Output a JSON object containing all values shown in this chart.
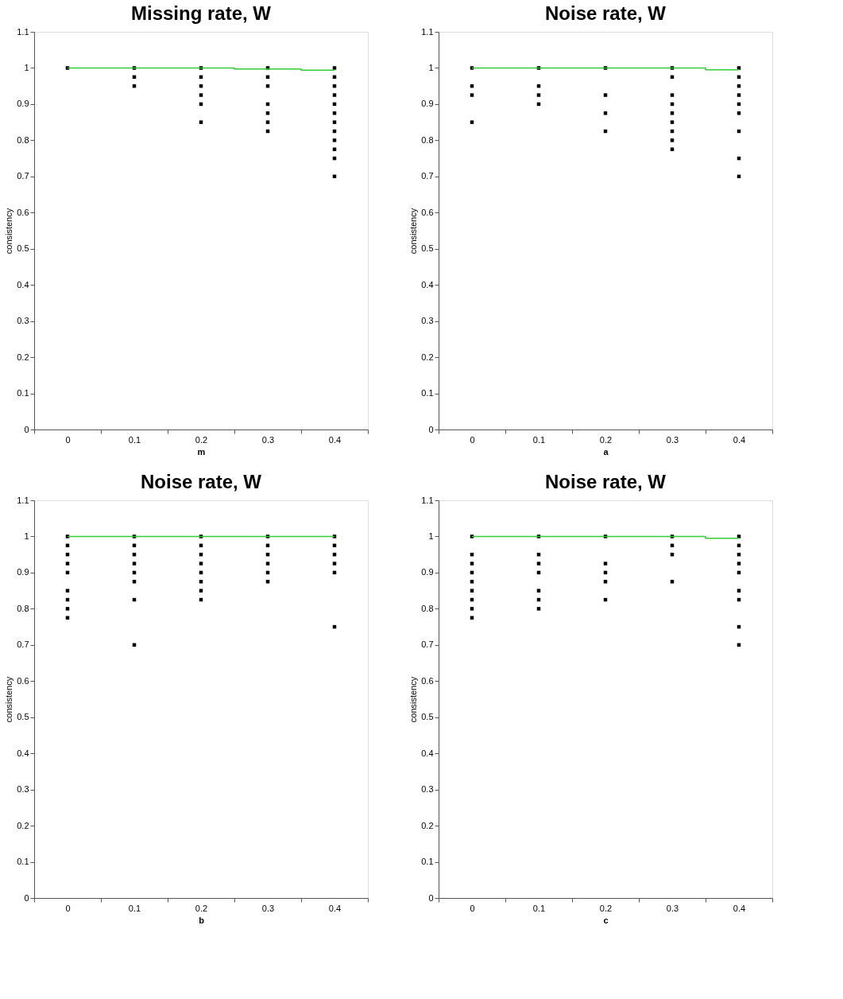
{
  "chart_data": [
    {
      "type": "scatter",
      "title": "Missing rate, W",
      "xlabel": "m",
      "ylabel": "consistency",
      "categories": [
        "0",
        "0.1",
        "0.2",
        "0.3",
        "0.4"
      ],
      "ylim": [
        0,
        1.1
      ],
      "yticks": [
        0,
        0.1,
        0.2,
        0.3,
        0.4,
        0.5,
        0.6,
        0.7,
        0.8,
        0.9,
        1,
        1.1
      ],
      "grid": false,
      "series": [
        {
          "marker": "square",
          "color": "#000000",
          "x": [
            "0",
            "0.1",
            "0.1",
            "0.1",
            "0.2",
            "0.2",
            "0.2",
            "0.2",
            "0.2",
            "0.2",
            "0.3",
            "0.3",
            "0.3",
            "0.3",
            "0.3",
            "0.3",
            "0.3",
            "0.4",
            "0.4",
            "0.4",
            "0.4",
            "0.4",
            "0.4",
            "0.4",
            "0.4",
            "0.4",
            "0.4",
            "0.4",
            "0.4"
          ],
          "values": [
            1,
            1,
            0.975,
            0.95,
            1,
            0.975,
            0.95,
            0.925,
            0.9,
            0.85,
            1,
            0.975,
            0.95,
            0.9,
            0.875,
            0.85,
            0.825,
            1,
            0.975,
            0.95,
            0.925,
            0.9,
            0.875,
            0.85,
            0.825,
            0.8,
            0.775,
            0.75,
            0.7
          ]
        },
        {
          "type": "step",
          "color": "#33cc33",
          "values": [
            1,
            1,
            1,
            0.997,
            0.994
          ]
        }
      ]
    },
    {
      "type": "scatter",
      "title": "Noise rate, W",
      "xlabel": "a",
      "ylabel": "consistency",
      "categories": [
        "0",
        "0.1",
        "0.2",
        "0.3",
        "0.4"
      ],
      "ylim": [
        0,
        1.1
      ],
      "yticks": [
        0,
        0.1,
        0.2,
        0.3,
        0.4,
        0.5,
        0.6,
        0.7,
        0.8,
        0.9,
        1,
        1.1
      ],
      "grid": false,
      "series": [
        {
          "marker": "square",
          "color": "#000000",
          "x": [
            "0",
            "0",
            "0",
            "0",
            "0.1",
            "0.1",
            "0.1",
            "0.1",
            "0.2",
            "0.2",
            "0.2",
            "0.2",
            "0.3",
            "0.3",
            "0.3",
            "0.3",
            "0.3",
            "0.3",
            "0.3",
            "0.3",
            "0.3",
            "0.4",
            "0.4",
            "0.4",
            "0.4",
            "0.4",
            "0.4",
            "0.4",
            "0.4",
            "0.4"
          ],
          "values": [
            1,
            0.95,
            0.925,
            0.85,
            1,
            0.95,
            0.925,
            0.9,
            1,
            0.925,
            0.875,
            0.825,
            1,
            0.975,
            0.925,
            0.9,
            0.875,
            0.85,
            0.825,
            0.8,
            0.775,
            1,
            0.975,
            0.95,
            0.925,
            0.9,
            0.875,
            0.825,
            0.75,
            0.7
          ]
        },
        {
          "type": "step",
          "color": "#33cc33",
          "values": [
            1,
            1,
            1,
            1,
            0.995
          ]
        }
      ]
    },
    {
      "type": "scatter",
      "title": "Noise rate, W",
      "xlabel": "b",
      "ylabel": "consistency",
      "categories": [
        "0",
        "0.1",
        "0.2",
        "0.3",
        "0.4"
      ],
      "ylim": [
        0,
        1.1
      ],
      "yticks": [
        0,
        0.1,
        0.2,
        0.3,
        0.4,
        0.5,
        0.6,
        0.7,
        0.8,
        0.9,
        1,
        1.1
      ],
      "grid": false,
      "series": [
        {
          "marker": "square",
          "color": "#000000",
          "x": [
            "0",
            "0",
            "0",
            "0",
            "0",
            "0",
            "0",
            "0",
            "0",
            "0.1",
            "0.1",
            "0.1",
            "0.1",
            "0.1",
            "0.1",
            "0.1",
            "0.1",
            "0.2",
            "0.2",
            "0.2",
            "0.2",
            "0.2",
            "0.2",
            "0.2",
            "0.2",
            "0.3",
            "0.3",
            "0.3",
            "0.3",
            "0.3",
            "0.3",
            "0.4",
            "0.4",
            "0.4",
            "0.4",
            "0.4",
            "0.4"
          ],
          "values": [
            1,
            0.975,
            0.95,
            0.925,
            0.9,
            0.85,
            0.825,
            0.8,
            0.775,
            1,
            0.975,
            0.95,
            0.925,
            0.9,
            0.875,
            0.825,
            0.7,
            1,
            0.975,
            0.95,
            0.925,
            0.9,
            0.875,
            0.85,
            0.825,
            1,
            0.975,
            0.95,
            0.925,
            0.9,
            0.875,
            1,
            0.975,
            0.95,
            0.925,
            0.9,
            0.75
          ]
        },
        {
          "type": "step",
          "color": "#33cc33",
          "values": [
            1,
            1,
            1,
            1,
            1
          ]
        }
      ]
    },
    {
      "type": "scatter",
      "title": "Noise rate, W",
      "xlabel": "c",
      "ylabel": "consistency",
      "categories": [
        "0",
        "0.1",
        "0.2",
        "0.3",
        "0.4"
      ],
      "ylim": [
        0,
        1.1
      ],
      "yticks": [
        0,
        0.1,
        0.2,
        0.3,
        0.4,
        0.5,
        0.6,
        0.7,
        0.8,
        0.9,
        1,
        1.1
      ],
      "grid": false,
      "series": [
        {
          "marker": "square",
          "color": "#000000",
          "x": [
            "0",
            "0",
            "0",
            "0",
            "0",
            "0",
            "0",
            "0",
            "0",
            "0.1",
            "0.1",
            "0.1",
            "0.1",
            "0.1",
            "0.1",
            "0.1",
            "0.2",
            "0.2",
            "0.2",
            "0.2",
            "0.2",
            "0.3",
            "0.3",
            "0.3",
            "0.3",
            "0.4",
            "0.4",
            "0.4",
            "0.4",
            "0.4",
            "0.4",
            "0.4",
            "0.4",
            "0.4"
          ],
          "values": [
            1,
            0.95,
            0.925,
            0.9,
            0.875,
            0.85,
            0.825,
            0.8,
            0.775,
            1,
            0.95,
            0.925,
            0.9,
            0.85,
            0.825,
            0.8,
            1,
            0.925,
            0.9,
            0.875,
            0.825,
            1,
            0.975,
            0.95,
            0.875,
            1,
            0.975,
            0.95,
            0.925,
            0.9,
            0.85,
            0.825,
            0.75,
            0.7
          ]
        },
        {
          "type": "step",
          "color": "#33cc33",
          "values": [
            1,
            1,
            1,
            1,
            0.995
          ]
        }
      ]
    }
  ]
}
